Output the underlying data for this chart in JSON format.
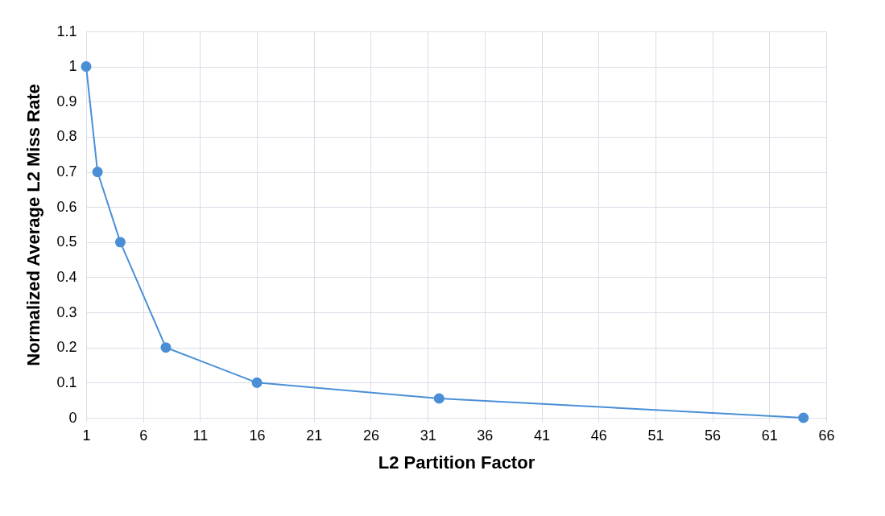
{
  "chart_data": {
    "type": "line",
    "xlabel": "L2 Partition Factor",
    "ylabel": "Normalized Average L2 Miss Rate",
    "x": [
      1,
      2,
      4,
      8,
      16,
      32,
      64
    ],
    "series": [
      {
        "color": "#4a8fd6",
        "values": [
          1,
          0.7,
          0.5,
          0.2,
          0.1,
          0.055,
          0
        ]
      }
    ],
    "xlim": [
      1,
      66
    ],
    "xticks": [
      1,
      6,
      11,
      16,
      21,
      26,
      31,
      36,
      41,
      46,
      51,
      56,
      61,
      66
    ],
    "ylim": [
      0,
      1.1
    ],
    "yticks": [
      0,
      0.1,
      0.2,
      0.3,
      0.4,
      0.5,
      0.6,
      0.7,
      0.8,
      0.9,
      1,
      1.1
    ],
    "grid": true,
    "marker": "circle",
    "line_style": "solid"
  }
}
